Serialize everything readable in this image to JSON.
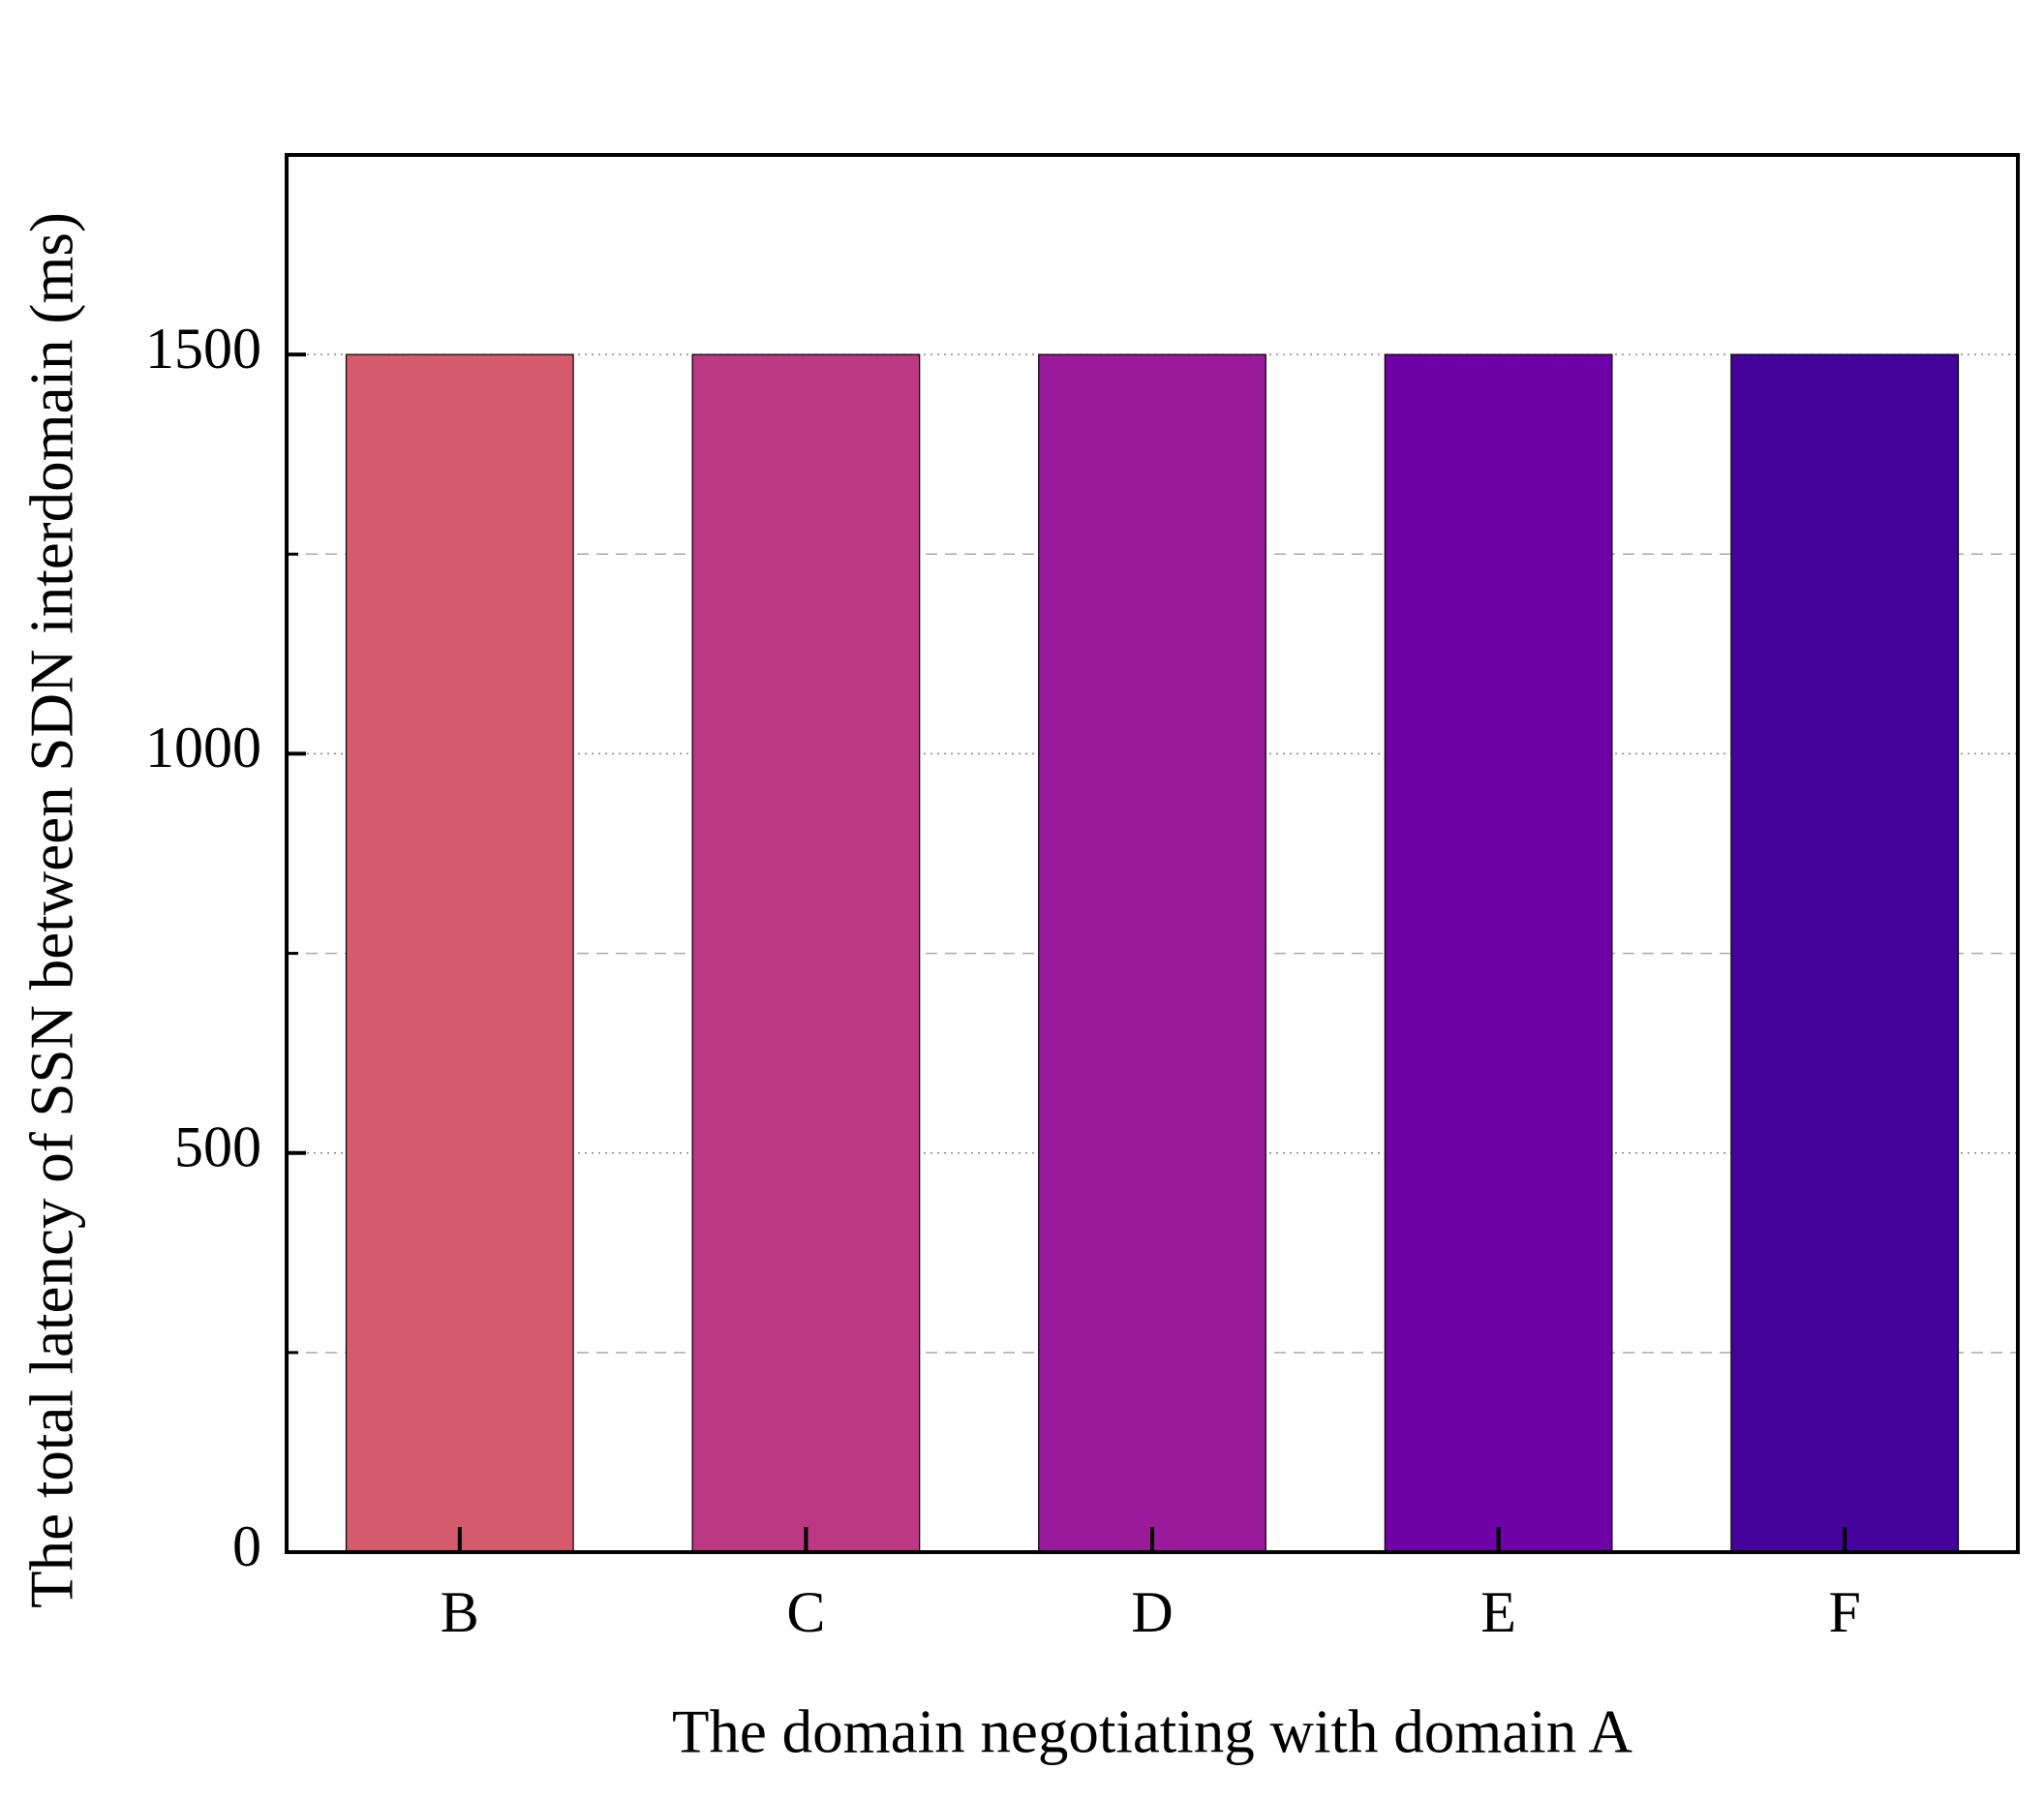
{
  "chart_data": {
    "type": "bar",
    "xlabel": "The domain negotiating with domain A",
    "ylabel": "The total latency of SSN between SDN interdomain (ms)",
    "categories": [
      "B",
      "C",
      "D",
      "E",
      "F"
    ],
    "values": [
      1500,
      1500,
      1500,
      1500,
      1500
    ],
    "colors": [
      "#d55a6c",
      "#bc3882",
      "#9a1a9c",
      "#6f02a6",
      "#45039b"
    ],
    "ylim": [
      0,
      1750
    ],
    "yticks": [
      0,
      500,
      1000,
      1500
    ],
    "minor_yticks": [
      250,
      750,
      1250
    ],
    "grid": true
  }
}
